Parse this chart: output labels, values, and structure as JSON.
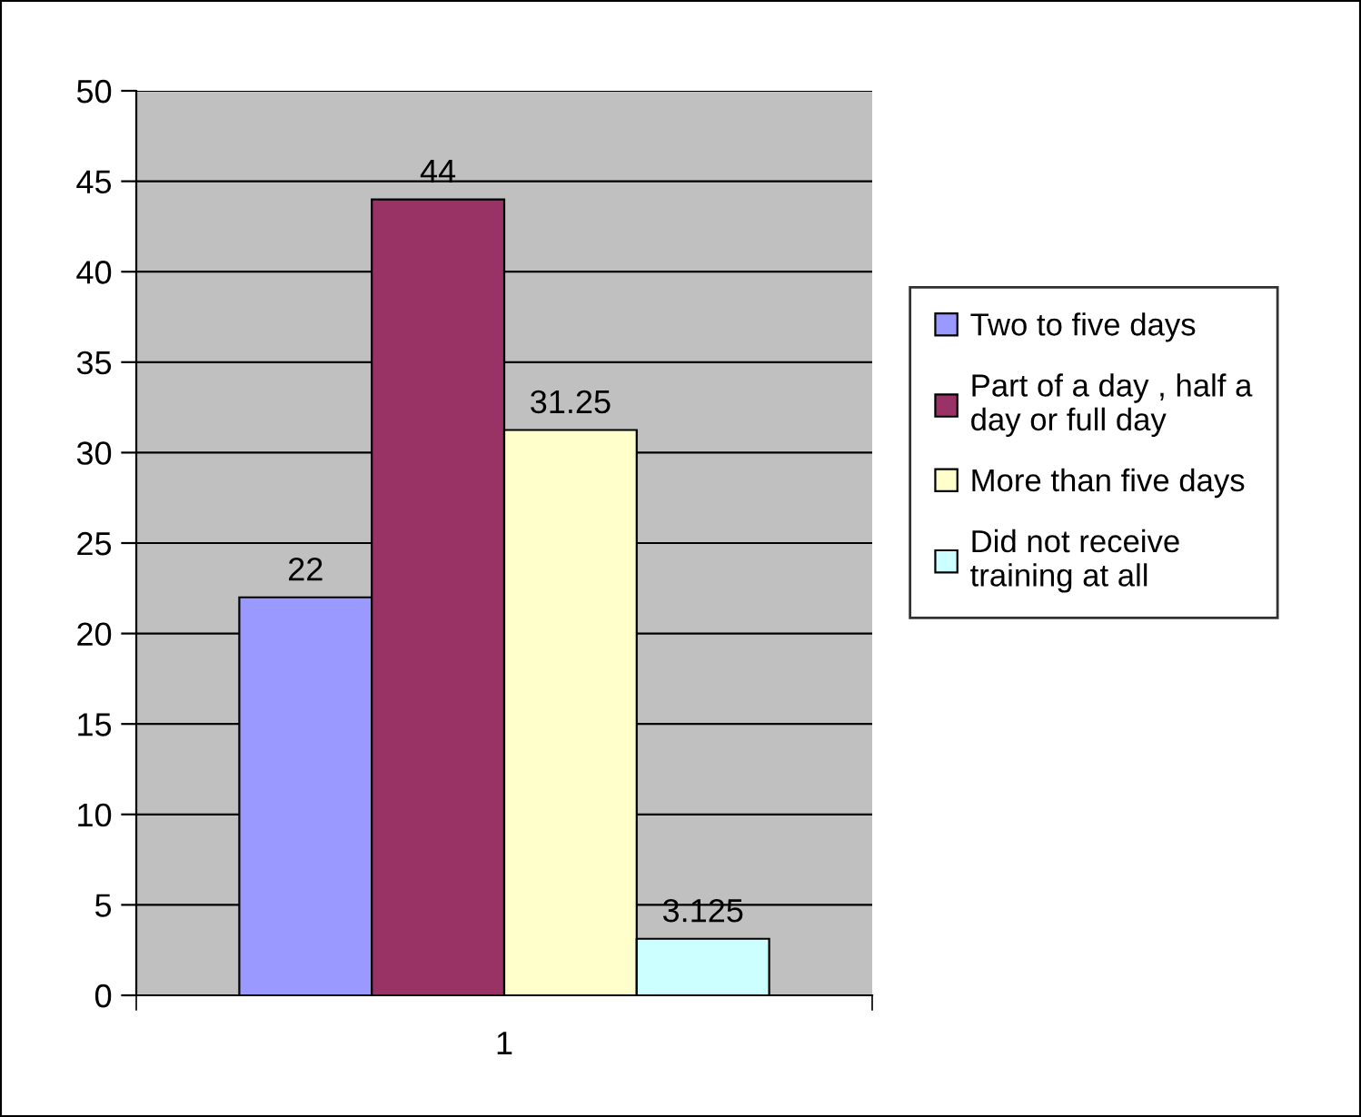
{
  "chart_data": {
    "type": "bar",
    "categories": [
      "1"
    ],
    "series": [
      {
        "name": "Two to five days",
        "color": "#9999ff",
        "values": [
          22
        ]
      },
      {
        "name": "Part of a day , half a day or full day",
        "color": "#993366",
        "values": [
          44
        ]
      },
      {
        "name": "More than five days",
        "color": "#ffffcc",
        "values": [
          31.25
        ]
      },
      {
        "name": "Did not receive training at all",
        "color": "#ccffff",
        "values": [
          3.125
        ]
      }
    ],
    "ylim": [
      0,
      50
    ],
    "yticks": [
      0,
      5,
      10,
      15,
      20,
      25,
      30,
      35,
      40,
      45,
      50
    ],
    "grid": "y",
    "legend": "right",
    "data_labels": true
  }
}
